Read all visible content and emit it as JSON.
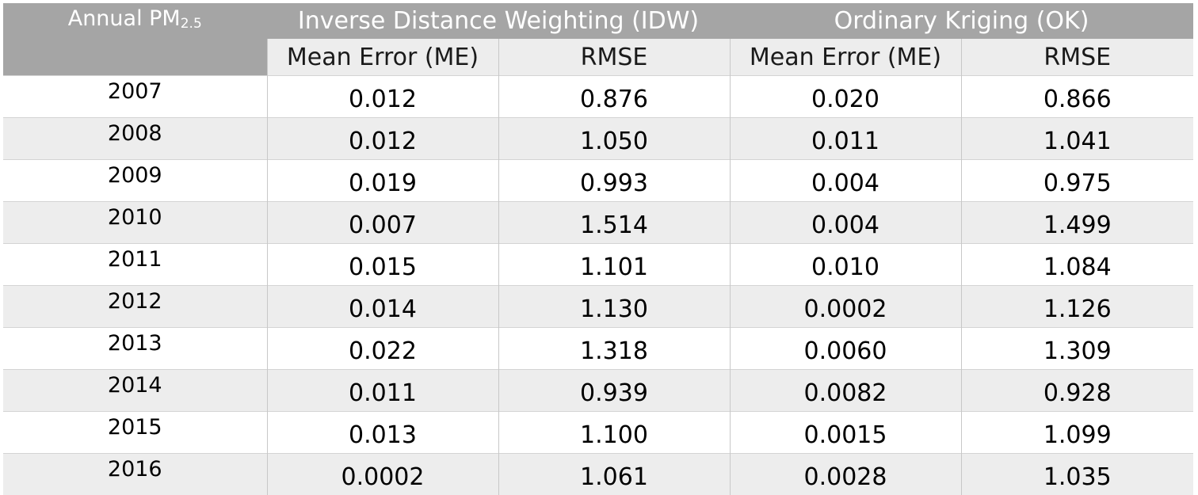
{
  "table": {
    "corner_label": "Annual PM",
    "corner_subscript": "2.5",
    "group_headers": [
      "Inverse Distance Weighting (IDW)",
      "Ordinary Kriging (OK)"
    ],
    "sub_headers": [
      "Mean Error (ME)",
      "RMSE",
      "Mean Error (ME)",
      "RMSE"
    ],
    "rows": [
      {
        "year": "2007",
        "idw_me": "0.012",
        "idw_rmse": "0.876",
        "ok_me": "0.020",
        "ok_rmse": "0.866"
      },
      {
        "year": "2008",
        "idw_me": "0.012",
        "idw_rmse": "1.050",
        "ok_me": "0.011",
        "ok_rmse": "1.041"
      },
      {
        "year": "2009",
        "idw_me": "0.019",
        "idw_rmse": "0.993",
        "ok_me": "0.004",
        "ok_rmse": "0.975"
      },
      {
        "year": "2010",
        "idw_me": "0.007",
        "idw_rmse": "1.514",
        "ok_me": "0.004",
        "ok_rmse": "1.499"
      },
      {
        "year": "2011",
        "idw_me": "0.015",
        "idw_rmse": "1.101",
        "ok_me": "0.010",
        "ok_rmse": "1.084"
      },
      {
        "year": "2012",
        "idw_me": "0.014",
        "idw_rmse": "1.130",
        "ok_me": "0.0002",
        "ok_rmse": "1.126"
      },
      {
        "year": "2013",
        "idw_me": "0.022",
        "idw_rmse": "1.318",
        "ok_me": "0.0060",
        "ok_rmse": "1.309"
      },
      {
        "year": "2014",
        "idw_me": "0.011",
        "idw_rmse": "0.939",
        "ok_me": "0.0082",
        "ok_rmse": "0.928"
      },
      {
        "year": "2015",
        "idw_me": "0.013",
        "idw_rmse": "1.100",
        "ok_me": "0.0015",
        "ok_rmse": "1.099"
      },
      {
        "year": "2016",
        "idw_me": "0.0002",
        "idw_rmse": "1.061",
        "ok_me": "0.0028",
        "ok_rmse": "1.035"
      }
    ],
    "colors": {
      "header_bg": "#a5a5a5",
      "header_text": "#ffffff",
      "band_bg": "#ededed",
      "row_bg": "#ffffff",
      "rule": "#c8c8c8"
    }
  }
}
